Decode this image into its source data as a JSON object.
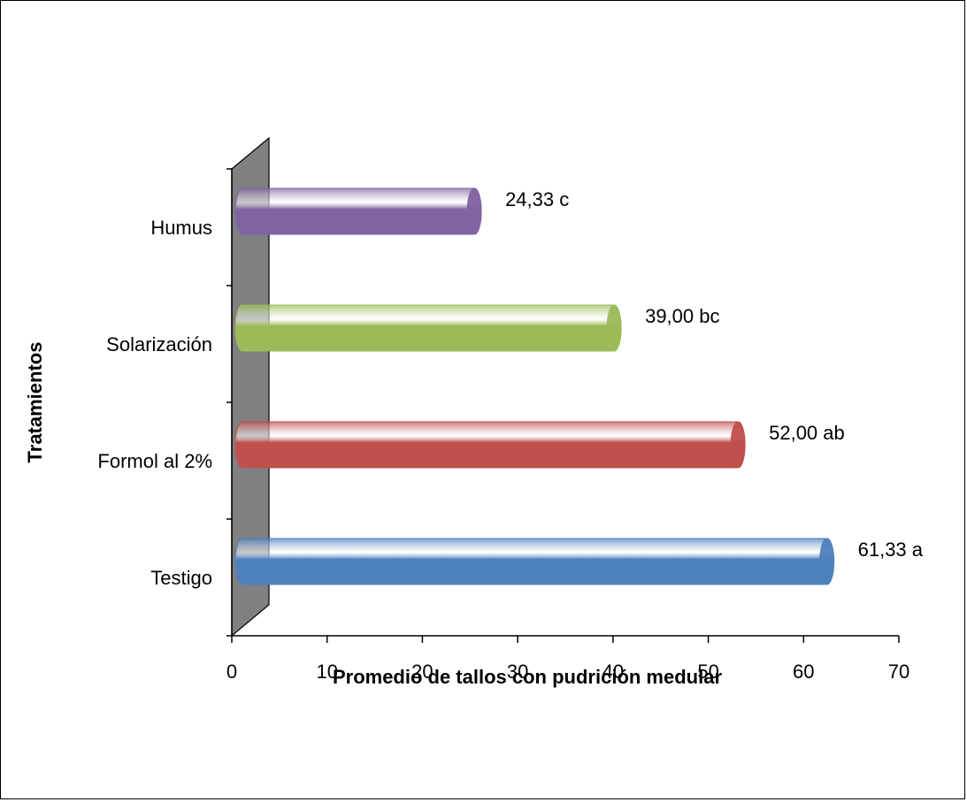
{
  "chart_data": {
    "type": "bar",
    "orientation": "horizontal",
    "style": "3d-cylinder",
    "categories": [
      "Testigo",
      "Formol al 2%",
      "Solarización",
      "Humus"
    ],
    "values": [
      61.33,
      52.0,
      39.0,
      24.33
    ],
    "data_labels": [
      "61,33 a",
      "52,00 ab",
      "39,00 bc",
      "24,33 c"
    ],
    "colors": [
      "#4f81bd",
      "#c0504d",
      "#9bbb59",
      "#8064a2"
    ],
    "xlabel": "Promedio de tallos con pudrición medular",
    "ylabel": "Tratamientos",
    "xlim": [
      0,
      70
    ],
    "xticks": [
      "0",
      "10",
      "20",
      "30",
      "40",
      "50",
      "60",
      "70"
    ],
    "grid": false,
    "legend": "none",
    "wall_color": "#808080"
  }
}
